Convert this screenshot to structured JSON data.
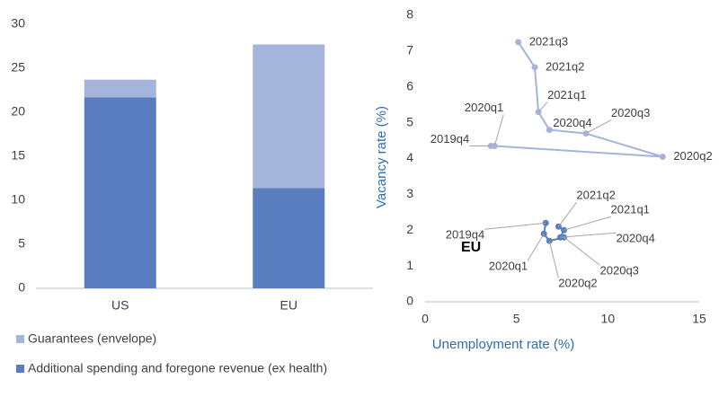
{
  "chart_data": [
    {
      "type": "bar",
      "stacked": true,
      "categories": [
        "US",
        "EU"
      ],
      "series": [
        {
          "name": "Additional spending and foregone revenue (ex health)",
          "color": "#5a7dbf",
          "values": [
            21.7,
            11.4
          ]
        },
        {
          "name": "Guarantees (envelope)",
          "color": "#a5b4da",
          "values": [
            2.0,
            16.3
          ]
        }
      ],
      "ylim": [
        0,
        30
      ],
      "yticks": [
        0,
        5,
        10,
        15,
        20,
        25,
        30
      ]
    },
    {
      "type": "line",
      "x_label": "Unemployment rate (%)",
      "y_label": "Vacancy rate (%)",
      "annotation": "EU",
      "xlim": [
        0,
        15
      ],
      "xticks": [
        0,
        5,
        10,
        15
      ],
      "ylim": [
        0,
        8
      ],
      "yticks": [
        0,
        1,
        2,
        3,
        4,
        5,
        6,
        7,
        8
      ],
      "series": [
        {
          "color": "#a5b4da",
          "x": [
            3.6,
            3.8,
            13.0,
            8.8,
            6.8,
            6.2,
            6.0,
            5.1
          ],
          "values": [
            4.35,
            4.35,
            4.05,
            4.7,
            4.8,
            5.3,
            6.55,
            7.25
          ],
          "point_labels": [
            "2019q4",
            "2020q1",
            "2020q2",
            "2020q3",
            "2020q4",
            "2021q1",
            "2021q2",
            "2021q3"
          ]
        },
        {
          "color": "#5a7dbf",
          "x": [
            6.6,
            6.5,
            6.8,
            7.6,
            7.4,
            7.6,
            7.3
          ],
          "values": [
            2.2,
            1.9,
            1.7,
            1.8,
            1.8,
            2.0,
            2.1
          ],
          "point_labels": [
            "2019q4",
            "2020q1",
            "2020q2",
            "2020q3",
            "2020q4",
            "2021q1",
            "2021q2"
          ]
        }
      ]
    }
  ]
}
